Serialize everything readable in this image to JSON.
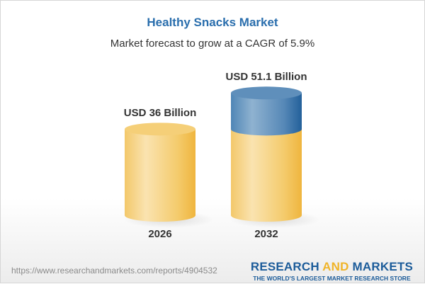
{
  "chart_data": {
    "type": "bar",
    "style": "3d-cylinder",
    "title": "Healthy Snacks Market",
    "subtitle": "Market forecast to grow at a CAGR of 5.9%",
    "categories": [
      "2026",
      "2032"
    ],
    "values": [
      36,
      51.1
    ],
    "data_labels": [
      "USD 36 Billion",
      "USD 51.1 Billion"
    ],
    "unit": "USD Billion",
    "grid": false,
    "colors": {
      "base": "#f2c35a",
      "growth": "#3f78a8",
      "title": "#2a6ead"
    }
  },
  "footer": {
    "url": "https://www.researchandmarkets.com/reports/4904532",
    "logo_part1": "RESEARCH",
    "logo_part2": "AND",
    "logo_part3": "MARKETS",
    "tagline": "THE WORLD'S LARGEST MARKET RESEARCH STORE"
  }
}
